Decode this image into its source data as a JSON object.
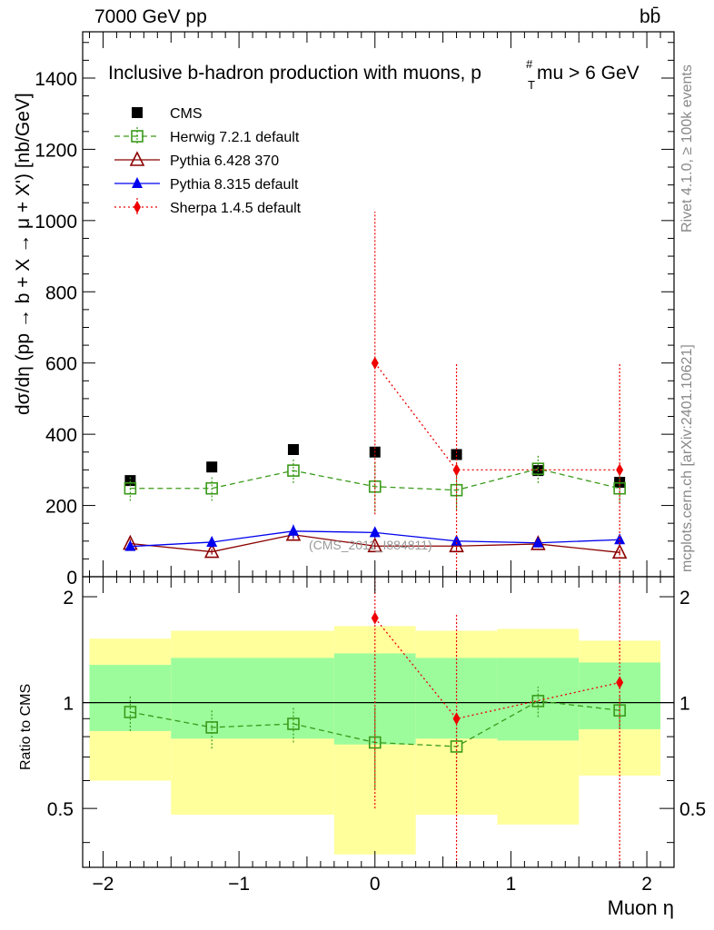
{
  "header": {
    "energy": "7000 GeV pp",
    "process": "bb̄"
  },
  "side_labels": {
    "rivet": "Rivet 4.1.0, ≥ 100k events",
    "mcplots": "mcplots.cern.ch [arXiv:2401.10621]"
  },
  "colors": {
    "cms": "#000000",
    "herwig": "#3a9a1a",
    "pythia6": "#8b0000",
    "pythia8": "#0000ee",
    "sherpa": "#ee0000",
    "band_inner": "#9cfc9c",
    "band_outer": "#ffff9c"
  },
  "chart_data": [
    {
      "type": "scatter",
      "title": "Inclusive b-hadron production with muons, p",
      "title_sup": "#",
      "title_sub": "T",
      "title_tail": "mu > 6 GeV",
      "xlabel": "Muon η",
      "ylabel": "dσ/dη (pp → b + X → μ + X') [nb/GeV]",
      "xlim": [
        -2.15,
        2.2
      ],
      "ylim": [
        0,
        1530
      ],
      "yticks": [
        0,
        200,
        400,
        600,
        800,
        1000,
        1200,
        1400
      ],
      "watermark": "(CMS_2011_I884811)",
      "legend_position": "top-left",
      "series": [
        {
          "name": "CMS",
          "key": "cms",
          "x": [
            -1.8,
            -1.2,
            -0.6,
            0.0,
            0.6,
            1.2,
            1.8
          ],
          "y": [
            270,
            308,
            357,
            350,
            343,
            298,
            265
          ],
          "err": [
            0,
            0,
            0,
            0,
            0,
            0,
            0
          ]
        },
        {
          "name": "Herwig 7.2.1 default",
          "key": "herwig",
          "x": [
            -1.8,
            -1.2,
            -0.6,
            0.0,
            0.6,
            1.2,
            1.8
          ],
          "y": [
            248,
            248,
            298,
            253,
            243,
            303,
            248
          ],
          "err": [
            35,
            35,
            35,
            70,
            55,
            40,
            40
          ]
        },
        {
          "name": "Pythia 6.428 370",
          "key": "pythia6",
          "x": [
            -1.8,
            -1.2,
            -0.6,
            0.0,
            0.6,
            1.2,
            1.8
          ],
          "y": [
            93,
            70,
            118,
            86,
            86,
            92,
            68
          ],
          "err": [
            12,
            8,
            12,
            10,
            10,
            10,
            8
          ]
        },
        {
          "name": "Pythia 8.315 default",
          "key": "pythia8",
          "x": [
            -1.8,
            -1.2,
            -0.6,
            0.0,
            0.6,
            1.2,
            1.8
          ],
          "y": [
            85,
            97,
            128,
            124,
            100,
            95,
            104
          ],
          "err": [
            12,
            15,
            18,
            15,
            12,
            12,
            15
          ]
        },
        {
          "name": "Sherpa 1.4.5 default",
          "key": "sherpa",
          "x": [
            0.0,
            0.6,
            1.8
          ],
          "y": [
            600,
            300,
            300
          ],
          "err": [
            425,
            300,
            300
          ]
        }
      ]
    },
    {
      "type": "scatter",
      "ylabel": "Ratio to CMS",
      "xlabel": "Muon η",
      "xlim": [
        -2.15,
        2.2
      ],
      "ylim": [
        0.34,
        2.28
      ],
      "yticks": [
        0.5,
        1,
        2
      ],
      "xticks": [
        -2,
        -1,
        0,
        1,
        2
      ],
      "reference": 1,
      "bands": [
        {
          "x": [
            -2.1,
            -1.5
          ],
          "inner": [
            0.83,
            1.28
          ],
          "outer": [
            0.6,
            1.52
          ]
        },
        {
          "x": [
            -1.5,
            -0.3
          ],
          "inner": [
            0.79,
            1.34
          ],
          "outer": [
            0.48,
            1.6
          ]
        },
        {
          "x": [
            -0.3,
            0.3
          ],
          "inner": [
            0.76,
            1.38
          ],
          "outer": [
            0.37,
            1.65
          ]
        },
        {
          "x": [
            0.3,
            0.9
          ],
          "inner": [
            0.79,
            1.34
          ],
          "outer": [
            0.48,
            1.6
          ]
        },
        {
          "x": [
            0.9,
            1.5
          ],
          "inner": [
            0.78,
            1.34
          ],
          "outer": [
            0.45,
            1.62
          ]
        },
        {
          "x": [
            1.5,
            2.1
          ],
          "inner": [
            0.84,
            1.3
          ],
          "outer": [
            0.62,
            1.5
          ]
        }
      ],
      "series": [
        {
          "name": "Herwig 7.2.1 default",
          "key": "herwig",
          "x": [
            -1.8,
            -1.2,
            -0.6,
            0.0,
            0.6,
            1.2,
            1.8
          ],
          "y": [
            0.94,
            0.85,
            0.87,
            0.77,
            0.75,
            1.01,
            0.95
          ],
          "err": [
            0.11,
            0.11,
            0.1,
            0.2,
            0.12,
            0.1,
            0.1
          ]
        },
        {
          "name": "Sherpa 1.4.5 default",
          "key": "sherpa",
          "x": [
            0.0,
            0.6,
            1.8
          ],
          "y": [
            1.74,
            0.9,
            1.14
          ],
          "err": [
            1.24,
            0.88,
            1.05
          ]
        }
      ]
    }
  ]
}
